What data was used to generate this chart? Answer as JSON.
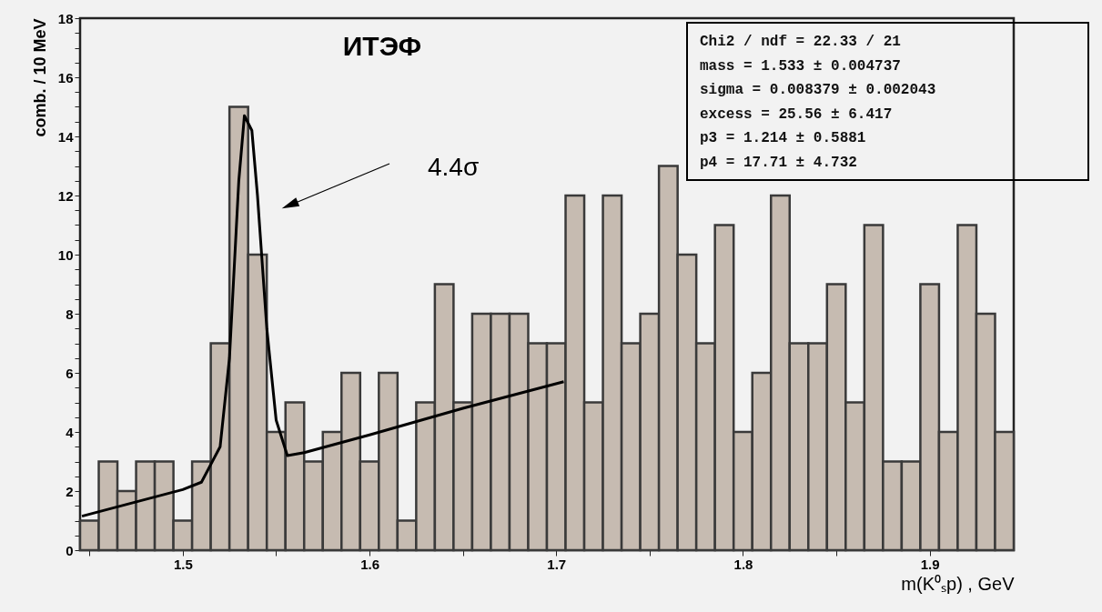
{
  "chart_data": {
    "type": "histogram",
    "title": "ИТЭФ",
    "xlabel": "m(K⁰ₛp) , GeV",
    "ylabel": "comb. / 10 MeV",
    "color": "#c6bbb1",
    "bins": [
      1.445,
      1.455,
      1.465,
      1.475,
      1.485,
      1.495,
      1.505,
      1.515,
      1.525,
      1.535,
      1.545,
      1.555,
      1.565,
      1.575,
      1.585,
      1.595,
      1.605,
      1.615,
      1.625,
      1.635,
      1.645,
      1.655,
      1.665,
      1.675,
      1.685,
      1.695,
      1.705,
      1.715,
      1.725,
      1.735,
      1.745,
      1.755,
      1.765,
      1.775,
      1.785,
      1.795,
      1.805,
      1.815,
      1.825,
      1.835,
      1.845,
      1.855,
      1.865,
      1.875,
      1.885,
      1.895,
      1.905,
      1.915,
      1.925,
      1.935,
      1.945
    ],
    "values": [
      1,
      3,
      2,
      3,
      3,
      1,
      3,
      7,
      15,
      10,
      4,
      5,
      3,
      4,
      6,
      3,
      6,
      1,
      5,
      9,
      5,
      8,
      8,
      8,
      7,
      7,
      12,
      5,
      12,
      7,
      8,
      13,
      10,
      7,
      11,
      4,
      6,
      12,
      7,
      7,
      9,
      5,
      11,
      3,
      3,
      9,
      4,
      11,
      8,
      4
    ],
    "series": [
      {
        "type": "line",
        "color": "#000000",
        "x": [
          1.446,
          1.47,
          1.5,
          1.51,
          1.52,
          1.525,
          1.53,
          1.533,
          1.537,
          1.54,
          1.545,
          1.55,
          1.556,
          1.565,
          1.6,
          1.65,
          1.704
        ],
        "values": [
          1.15,
          1.55,
          2.05,
          2.3,
          3.5,
          6.5,
          12.5,
          14.7,
          14.2,
          12.0,
          7.5,
          4.4,
          3.2,
          3.3,
          3.9,
          4.8,
          5.7
        ]
      }
    ],
    "xlim": [
      1.445,
      1.945
    ],
    "ylim": [
      0,
      18
    ],
    "xticks": [
      {
        "value": 1.45,
        "label": null
      },
      1.5,
      {
        "value": 1.55,
        "label": null
      },
      1.6,
      {
        "value": 1.65,
        "label": null
      },
      1.7,
      {
        "value": 1.75,
        "label": null
      },
      1.8,
      {
        "value": 1.85,
        "label": null
      },
      1.9
    ],
    "yticks": [
      0,
      {
        "value": 0.5,
        "label": null
      },
      {
        "value": 1,
        "label": null
      },
      {
        "value": 1.5,
        "label": null
      },
      2,
      {
        "value": 2.5,
        "label": null
      },
      {
        "value": 3,
        "label": null
      },
      {
        "value": 3.5,
        "label": null
      },
      4,
      {
        "value": 4.5,
        "label": null
      },
      {
        "value": 5,
        "label": null
      },
      {
        "value": 5.5,
        "label": null
      },
      6,
      {
        "value": 6.5,
        "label": null
      },
      {
        "value": 7,
        "label": null
      },
      {
        "value": 7.5,
        "label": null
      },
      8,
      {
        "value": 8.5,
        "label": null
      },
      {
        "value": 9,
        "label": null
      },
      {
        "value": 9.5,
        "label": null
      },
      10,
      {
        "value": 10.5,
        "label": null
      },
      {
        "value": 11,
        "label": null
      },
      {
        "value": 11.5,
        "label": null
      },
      12,
      {
        "value": 12.5,
        "label": null
      },
      {
        "value": 13,
        "label": null
      },
      {
        "value": 13.5,
        "label": null
      },
      14,
      {
        "value": 14.5,
        "label": null
      },
      {
        "value": 15,
        "label": null
      },
      {
        "value": 15.5,
        "label": null
      },
      16,
      {
        "value": 16.5,
        "label": null
      },
      {
        "value": 17,
        "label": null
      },
      {
        "value": 17.5,
        "label": null
      },
      18
    ],
    "annotations": [
      "4.4σ",
      "Chi2 / ndf = 22.33 / 21",
      "mass     = 1.533 ± 0.004737",
      "sigma    = 0.008379 ± 0.002043",
      "excess   = 25.56 ± 6.417",
      "p3       = 1.214 ± 0.5881",
      "p4       = 17.71 ± 4.732"
    ]
  }
}
